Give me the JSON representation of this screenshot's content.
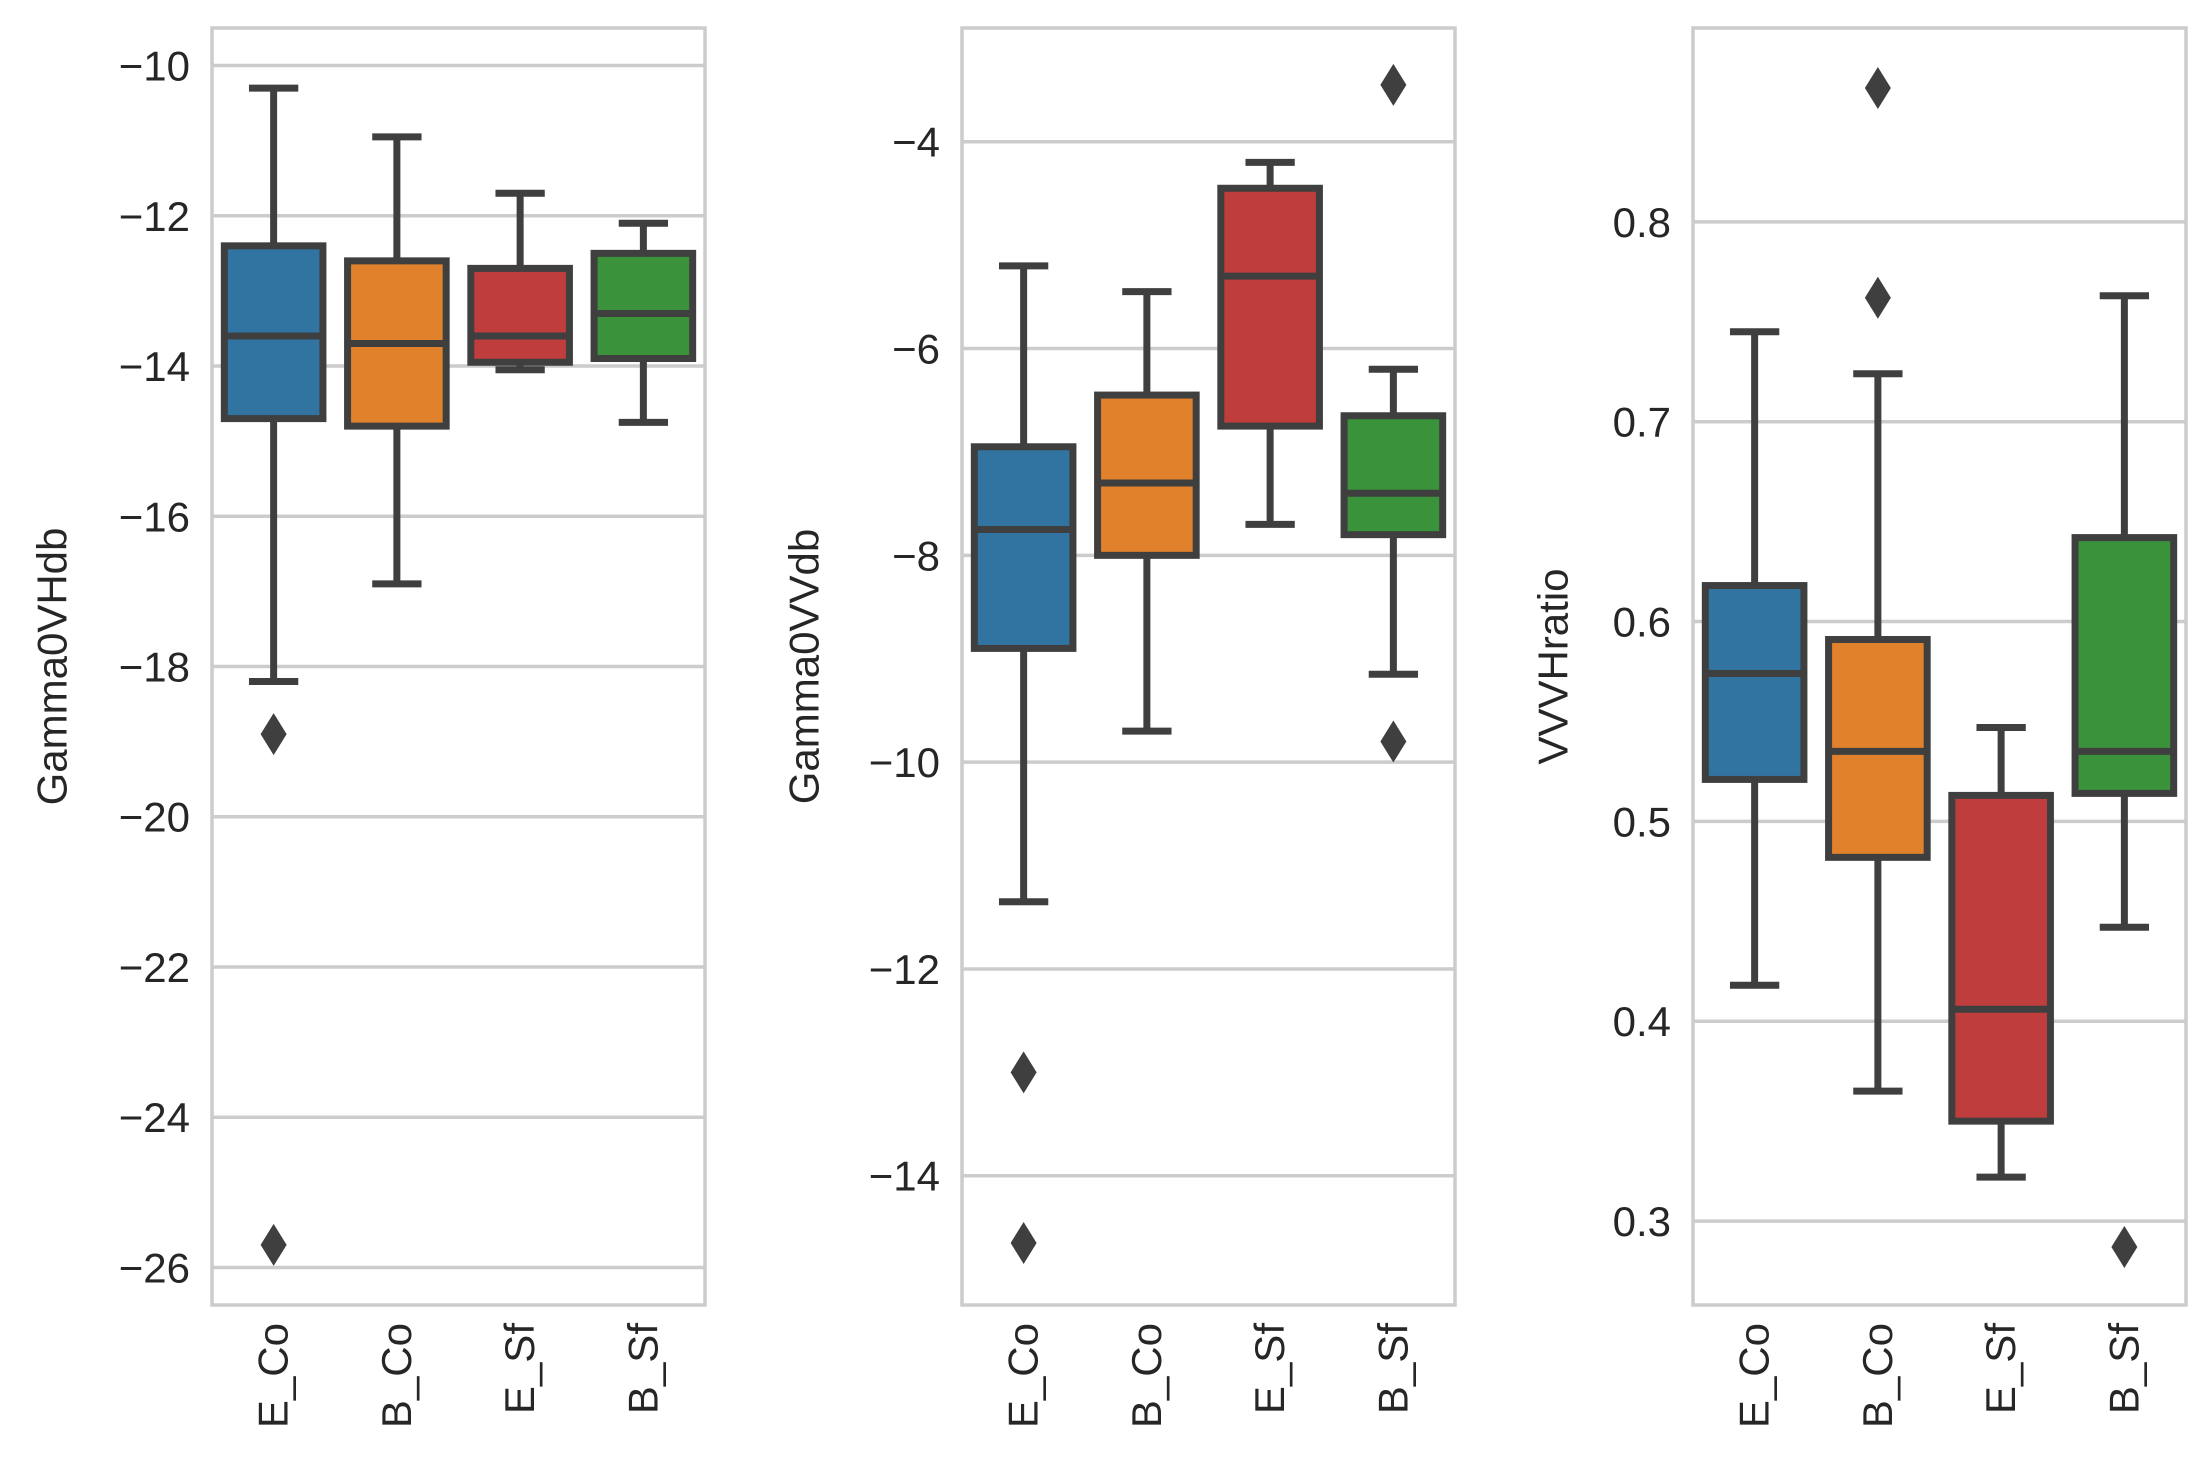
{
  "colors": {
    "E_Co": "#3274a1",
    "B_Co": "#e1812c",
    "E_Sf": "#c03d3e",
    "B_Sf": "#3a923a",
    "line": "#3f3f3f",
    "grid": "#cccccc",
    "text": "#262626"
  },
  "chart_data": [
    {
      "type": "box",
      "ylabel": "Gamma0VHdb",
      "ylim": [
        -26.5,
        -9.5
      ],
      "yticks": [
        -26,
        -24,
        -22,
        -20,
        -18,
        -16,
        -14,
        -12,
        -10
      ],
      "ytick_labels": [
        "−26",
        "−24",
        "−22",
        "−20",
        "−18",
        "−16",
        "−14",
        "−12",
        "−10"
      ],
      "categories": [
        "E_Co",
        "B_Co",
        "E_Sf",
        "B_Sf"
      ],
      "boxes": [
        {
          "category": "E_Co",
          "whislo": -18.2,
          "q1": -14.7,
          "med": -13.6,
          "q3": -12.4,
          "whishi": -10.3,
          "fliers": [
            -18.9,
            -25.7
          ]
        },
        {
          "category": "B_Co",
          "whislo": -16.9,
          "q1": -14.8,
          "med": -13.7,
          "q3": -12.6,
          "whishi": -10.95,
          "fliers": []
        },
        {
          "category": "E_Sf",
          "whislo": -14.05,
          "q1": -13.95,
          "med": -13.6,
          "q3": -12.7,
          "whishi": -11.7,
          "fliers": []
        },
        {
          "category": "B_Sf",
          "whislo": -14.75,
          "q1": -13.9,
          "med": -13.3,
          "q3": -12.5,
          "whishi": -12.1,
          "fliers": []
        }
      ]
    },
    {
      "type": "box",
      "ylabel": "Gamma0VVdb",
      "ylim": [
        -15.25,
        -2.9
      ],
      "yticks": [
        -14,
        -12,
        -10,
        -8,
        -6,
        -4
      ],
      "ytick_labels": [
        "−14",
        "−12",
        "−10",
        "−8",
        "−6",
        "−4"
      ],
      "categories": [
        "E_Co",
        "B_Co",
        "E_Sf",
        "B_Sf"
      ],
      "boxes": [
        {
          "category": "E_Co",
          "whislo": -11.35,
          "q1": -8.9,
          "med": -7.75,
          "q3": -6.95,
          "whishi": -5.2,
          "fliers": [
            -13.0,
            -14.65
          ]
        },
        {
          "category": "B_Co",
          "whislo": -9.7,
          "q1": -8.0,
          "med": -7.3,
          "q3": -6.45,
          "whishi": -5.45,
          "fliers": []
        },
        {
          "category": "E_Sf",
          "whislo": -7.7,
          "q1": -6.75,
          "med": -5.3,
          "q3": -4.45,
          "whishi": -4.2,
          "fliers": []
        },
        {
          "category": "B_Sf",
          "whislo": -9.15,
          "q1": -7.8,
          "med": -7.4,
          "q3": -6.65,
          "whishi": -6.2,
          "fliers": [
            -3.45,
            -9.8
          ]
        }
      ]
    },
    {
      "type": "box",
      "ylabel": "VVVHratio",
      "ylim": [
        0.258,
        0.897
      ],
      "yticks": [
        0.3,
        0.4,
        0.5,
        0.6,
        0.7,
        0.8
      ],
      "ytick_labels": [
        "0.3",
        "0.4",
        "0.5",
        "0.6",
        "0.7",
        "0.8"
      ],
      "categories": [
        "E_Co",
        "B_Co",
        "E_Sf",
        "B_Sf"
      ],
      "boxes": [
        {
          "category": "E_Co",
          "whislo": 0.418,
          "q1": 0.521,
          "med": 0.574,
          "q3": 0.618,
          "whishi": 0.745,
          "fliers": []
        },
        {
          "category": "B_Co",
          "whislo": 0.365,
          "q1": 0.482,
          "med": 0.535,
          "q3": 0.591,
          "whishi": 0.724,
          "fliers": [
            0.762,
            0.867
          ]
        },
        {
          "category": "E_Sf",
          "whislo": 0.322,
          "q1": 0.35,
          "med": 0.406,
          "q3": 0.513,
          "whishi": 0.547,
          "fliers": []
        },
        {
          "category": "B_Sf",
          "whislo": 0.447,
          "q1": 0.514,
          "med": 0.535,
          "q3": 0.642,
          "whishi": 0.763,
          "fliers": [
            0.287
          ]
        }
      ]
    }
  ]
}
